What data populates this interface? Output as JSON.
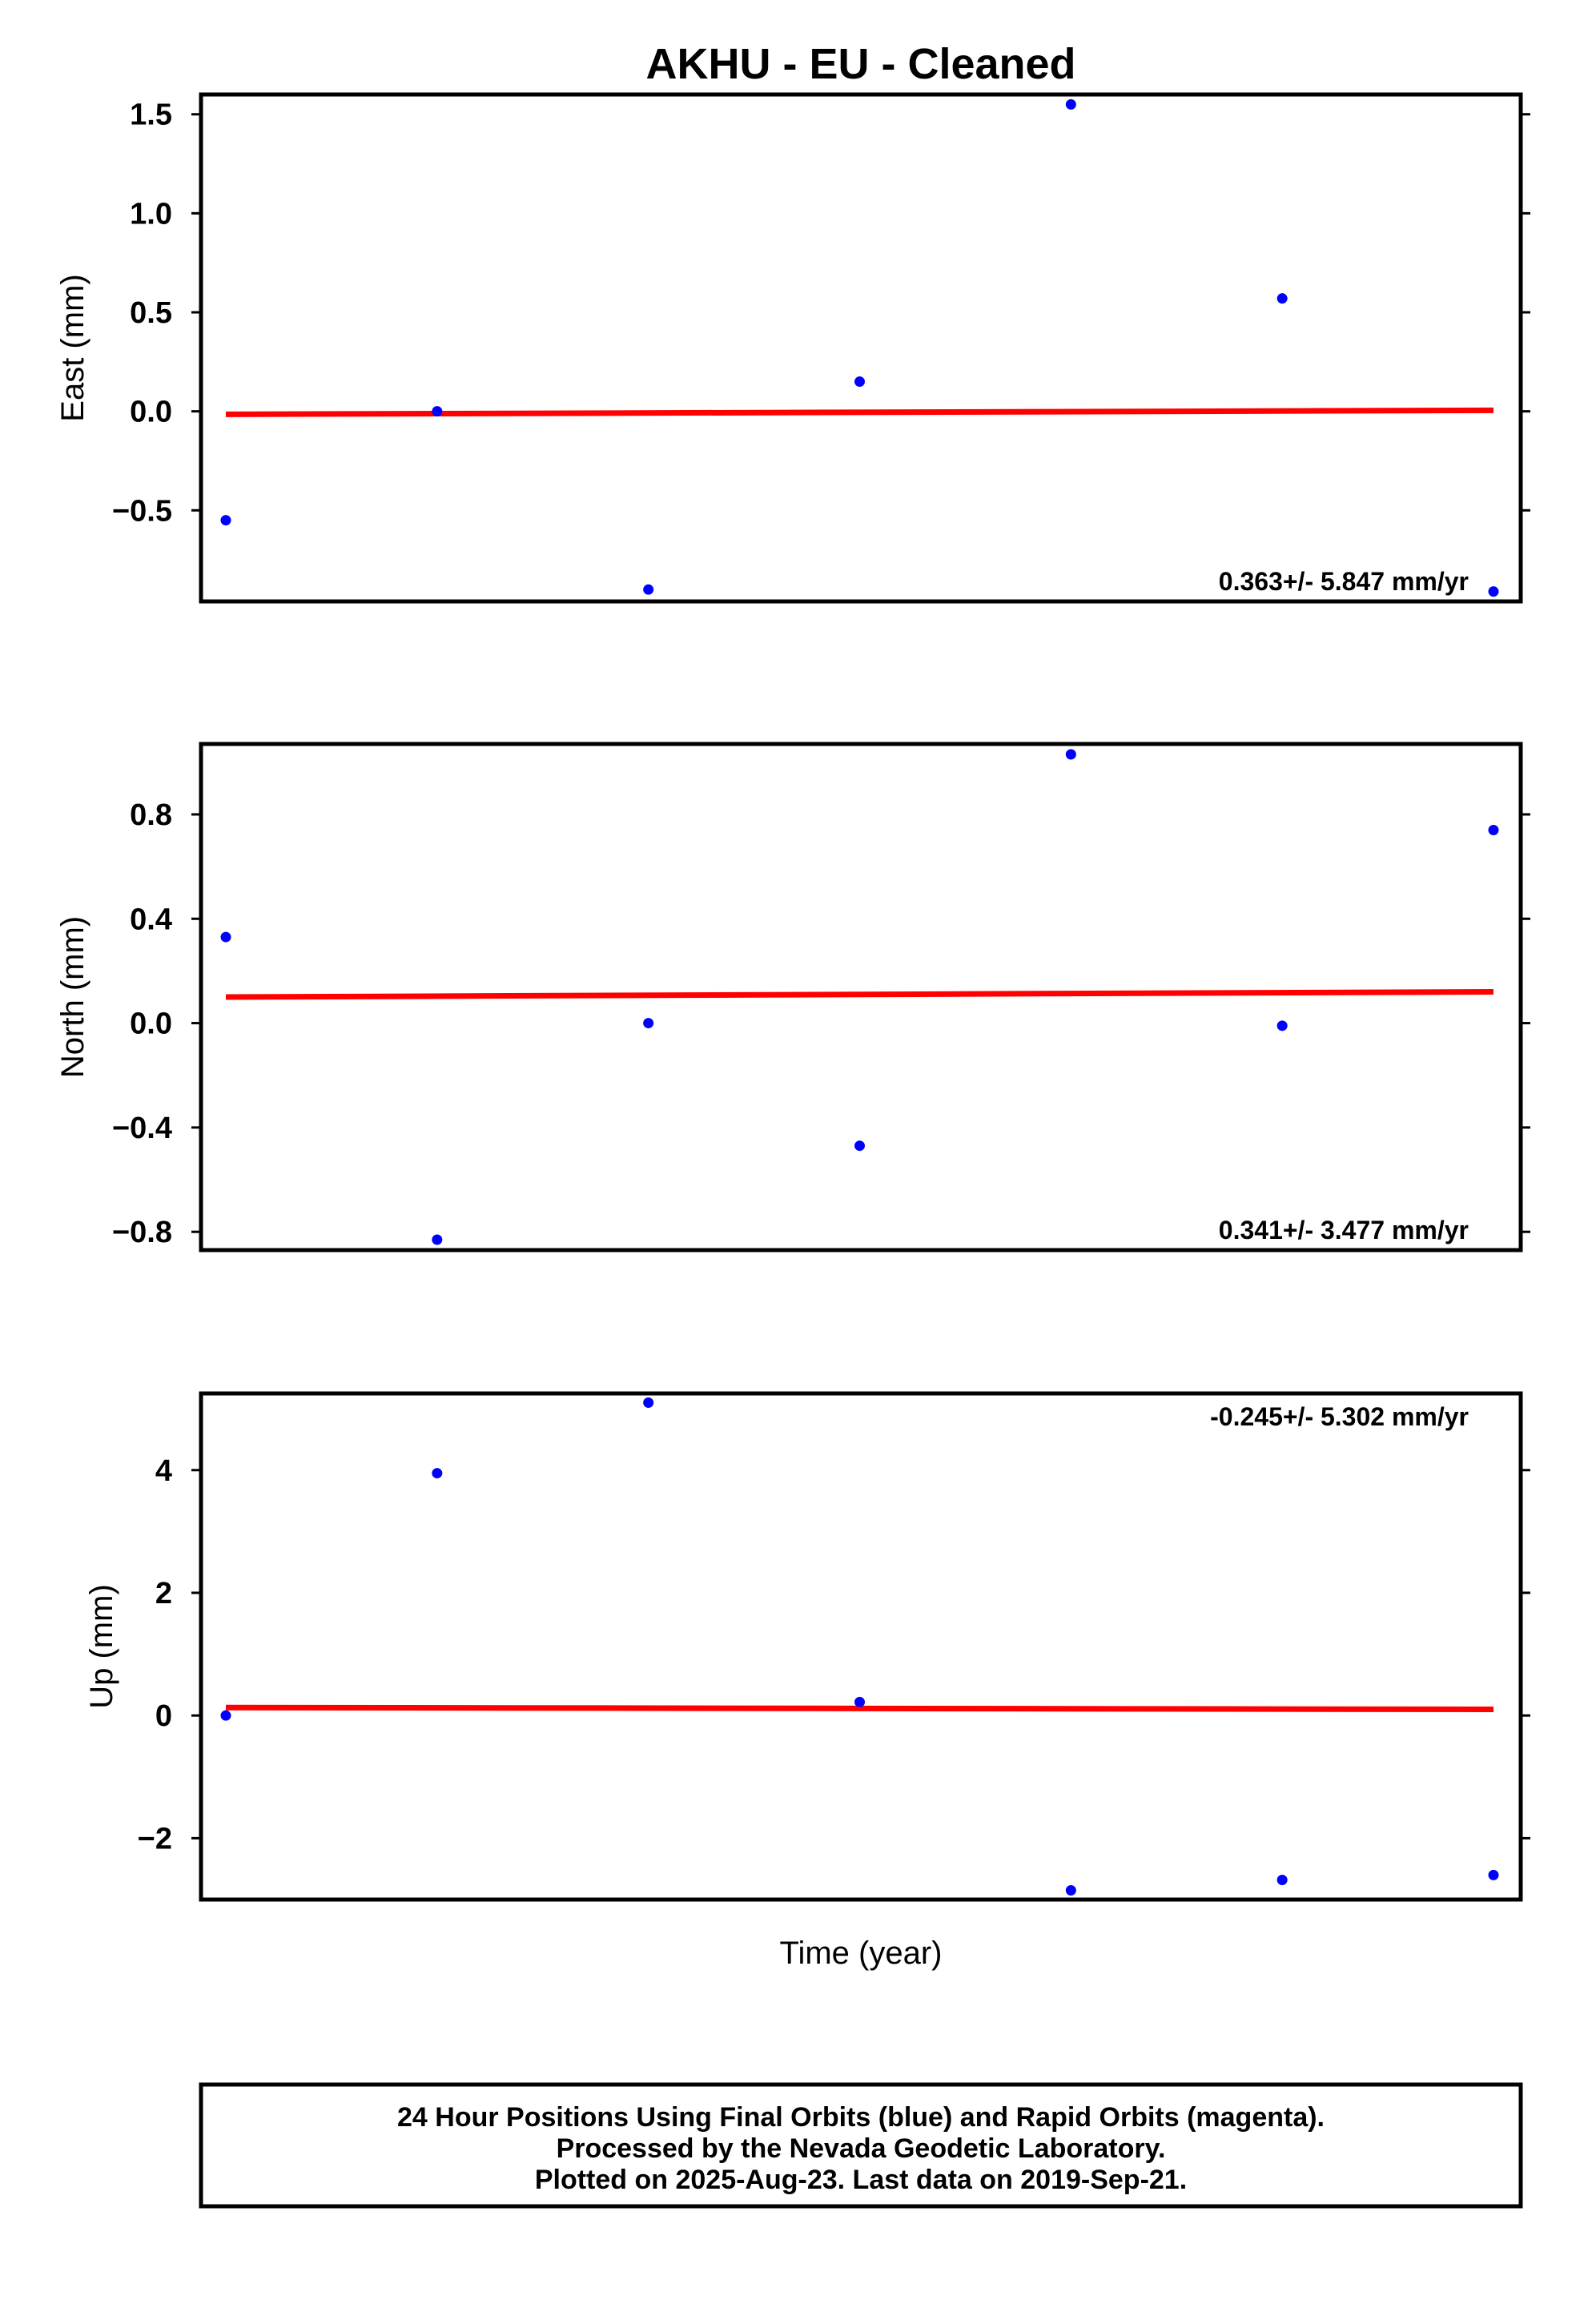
{
  "chart_data": {
    "title": "AKHU  - EU - Cleaned",
    "xlabel": "Time (year)",
    "colors": {
      "points": "#0000ff",
      "trend": "#ff0000",
      "frame": "#000000"
    },
    "panels": [
      {
        "type": "scatter",
        "ylabel": "East (mm)",
        "ylim": [
          -0.96,
          1.6
        ],
        "yticks": [
          1.5,
          1.0,
          0.5,
          0.0,
          -0.5
        ],
        "tick_labels": [
          "1.5",
          "1.0",
          "0.5",
          "0.0",
          "−0.5"
        ],
        "rate": "0.363+/- 5.847 mm/yr",
        "rate_position": "bottom-right",
        "points": [
          -0.55,
          0.0,
          -0.9,
          0.15,
          1.55,
          0.57,
          -0.91
        ],
        "trend": [
          -0.015,
          0.005
        ]
      },
      {
        "type": "scatter",
        "ylabel": "North (mm)",
        "ylim": [
          -0.87,
          1.07
        ],
        "yticks": [
          0.8,
          0.4,
          0.0,
          -0.4,
          -0.8
        ],
        "tick_labels": [
          "0.8",
          "0.4",
          "0.0",
          "−0.4",
          "−0.8"
        ],
        "rate": "0.341+/- 3.477 mm/yr",
        "rate_position": "bottom-right",
        "points": [
          0.33,
          -0.83,
          0.0,
          -0.47,
          1.03,
          -0.01,
          0.74
        ],
        "trend": [
          0.1,
          0.12
        ]
      },
      {
        "type": "scatter",
        "ylabel": "Up (mm)",
        "ylim": [
          -3.0,
          5.25
        ],
        "yticks": [
          4,
          2,
          0,
          -2
        ],
        "tick_labels": [
          "4",
          "2",
          "0",
          "−2"
        ],
        "rate": "-0.245+/- 5.302 mm/yr",
        "rate_position": "top-right",
        "points": [
          0.0,
          3.95,
          5.1,
          0.22,
          -2.85,
          -2.68,
          -2.6
        ],
        "trend": [
          0.13,
          0.1
        ]
      }
    ]
  },
  "footer": {
    "line1": "24 Hour Positions Using Final Orbits (blue) and Rapid Orbits (magenta).",
    "line2": "Processed by the Nevada Geodetic Laboratory.",
    "line3": "Plotted on 2025-Aug-23. Last data on 2019-Sep-21."
  }
}
